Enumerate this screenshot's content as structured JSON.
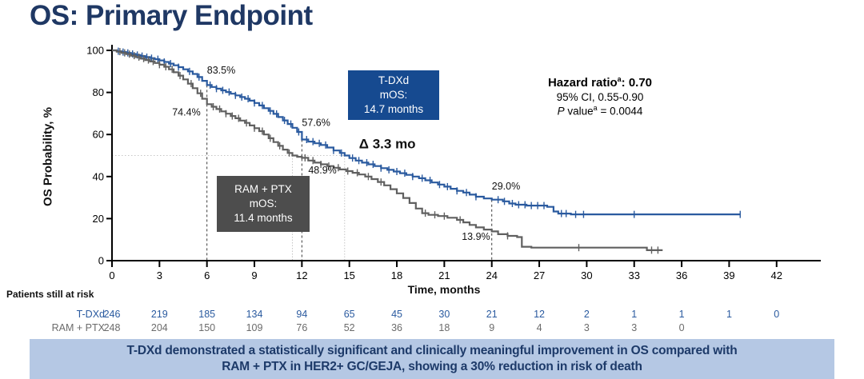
{
  "slide": {
    "title": "OS: Primary Endpoint"
  },
  "chart_data": {
    "type": "line",
    "subtype": "kaplan-meier",
    "xlabel": "Time, months",
    "ylabel": "OS Probability, %",
    "xlim": [
      0,
      43.5
    ],
    "ylim": [
      0,
      100
    ],
    "xticks": [
      0,
      3,
      6,
      9,
      12,
      15,
      18,
      21,
      24,
      27,
      30,
      33,
      36,
      39,
      42
    ],
    "yticks": [
      0,
      20,
      40,
      60,
      80,
      100
    ],
    "grid": false,
    "legend_position": "none",
    "series": [
      {
        "name": "T-DXd",
        "color": "#2a5a9f",
        "median_months": 14.7,
        "points": [
          [
            0,
            100
          ],
          [
            0.3,
            99.6
          ],
          [
            0.6,
            99.2
          ],
          [
            0.9,
            98.8
          ],
          [
            1.2,
            98.3
          ],
          [
            1.5,
            97.8
          ],
          [
            1.8,
            97.3
          ],
          [
            2.1,
            96.8
          ],
          [
            2.4,
            96.3
          ],
          [
            2.7,
            95.8
          ],
          [
            3.0,
            95.2
          ],
          [
            3.3,
            94.5
          ],
          [
            3.6,
            93.7
          ],
          [
            3.9,
            92.9
          ],
          [
            4.2,
            92.0
          ],
          [
            4.5,
            91.0
          ],
          [
            4.8,
            90.0
          ],
          [
            5.1,
            88.8
          ],
          [
            5.4,
            87.3
          ],
          [
            5.7,
            85.5
          ],
          [
            6.0,
            83.5
          ],
          [
            6.3,
            82.6
          ],
          [
            6.6,
            81.8
          ],
          [
            6.9,
            81.0
          ],
          [
            7.2,
            80.2
          ],
          [
            7.5,
            79.4
          ],
          [
            7.8,
            78.6
          ],
          [
            8.1,
            77.8
          ],
          [
            8.4,
            77.0
          ],
          [
            8.7,
            76.1
          ],
          [
            9.0,
            75.0
          ],
          [
            9.3,
            73.8
          ],
          [
            9.6,
            72.5
          ],
          [
            9.9,
            71.2
          ],
          [
            10.2,
            69.8
          ],
          [
            10.5,
            68.3
          ],
          [
            10.8,
            66.7
          ],
          [
            11.1,
            65.0
          ],
          [
            11.4,
            63.2
          ],
          [
            11.7,
            61.2
          ],
          [
            12.0,
            57.6
          ],
          [
            12.4,
            56.6
          ],
          [
            12.8,
            55.8
          ],
          [
            13.2,
            55.0
          ],
          [
            13.6,
            53.8
          ],
          [
            14.0,
            52.4
          ],
          [
            14.4,
            51.2
          ],
          [
            14.7,
            50.0
          ],
          [
            15.0,
            48.8
          ],
          [
            15.4,
            47.6
          ],
          [
            15.8,
            46.6
          ],
          [
            16.2,
            45.8
          ],
          [
            16.6,
            45.0
          ],
          [
            17.0,
            44.0
          ],
          [
            17.4,
            43.2
          ],
          [
            17.8,
            42.4
          ],
          [
            18.2,
            41.6
          ],
          [
            18.6,
            40.8
          ],
          [
            19.0,
            40.0
          ],
          [
            19.4,
            39.2
          ],
          [
            19.8,
            38.2
          ],
          [
            20.2,
            37.2
          ],
          [
            20.6,
            36.2
          ],
          [
            21.0,
            35.2
          ],
          [
            21.4,
            34.2
          ],
          [
            21.8,
            33.2
          ],
          [
            22.2,
            32.4
          ],
          [
            22.6,
            31.4
          ],
          [
            23.0,
            30.4
          ],
          [
            23.5,
            29.6
          ],
          [
            24.0,
            29.0
          ],
          [
            24.7,
            28.2
          ],
          [
            25.1,
            27.2
          ],
          [
            25.5,
            26.6
          ],
          [
            26.2,
            26.2
          ],
          [
            27.5,
            25.6
          ],
          [
            27.9,
            23.4
          ],
          [
            28.2,
            22.4
          ],
          [
            29.0,
            22.0
          ],
          [
            39.7,
            22.0
          ]
        ],
        "censor_times": [
          0.4,
          0.7,
          1.0,
          1.3,
          1.6,
          1.9,
          2.2,
          2.5,
          2.9,
          3.3,
          3.7,
          4.2,
          4.9,
          5.5,
          6.2,
          6.6,
          7.0,
          7.4,
          7.8,
          8.2,
          8.6,
          9.0,
          9.5,
          10.0,
          10.4,
          10.9,
          11.3,
          11.8,
          12.3,
          12.7,
          13.1,
          13.5,
          14.0,
          14.5,
          15.2,
          15.6,
          16.1,
          16.5,
          17.0,
          17.5,
          18.0,
          18.5,
          19.0,
          19.6,
          20.1,
          20.7,
          21.2,
          21.8,
          22.4,
          23.0,
          24.4,
          24.8,
          25.3,
          25.7,
          26.1,
          26.5,
          26.9,
          27.3,
          28.4,
          28.7,
          29.3,
          29.8,
          33.0,
          39.7
        ]
      },
      {
        "name": "RAM + PTX",
        "color": "#606060",
        "median_months": 11.4,
        "points": [
          [
            0,
            100
          ],
          [
            0.3,
            99.4
          ],
          [
            0.6,
            98.8
          ],
          [
            0.9,
            98.2
          ],
          [
            1.2,
            97.5
          ],
          [
            1.5,
            96.8
          ],
          [
            1.8,
            96.1
          ],
          [
            2.1,
            95.4
          ],
          [
            2.4,
            94.7
          ],
          [
            2.7,
            94.0
          ],
          [
            3.0,
            93.2
          ],
          [
            3.3,
            92.2
          ],
          [
            3.6,
            91.0
          ],
          [
            3.9,
            89.6
          ],
          [
            4.2,
            88.0
          ],
          [
            4.5,
            86.2
          ],
          [
            4.8,
            84.2
          ],
          [
            5.1,
            82.0
          ],
          [
            5.4,
            79.6
          ],
          [
            5.7,
            77.0
          ],
          [
            6.0,
            74.4
          ],
          [
            6.3,
            73.2
          ],
          [
            6.6,
            72.1
          ],
          [
            6.9,
            71.0
          ],
          [
            7.2,
            69.9
          ],
          [
            7.5,
            68.8
          ],
          [
            7.8,
            67.7
          ],
          [
            8.1,
            66.6
          ],
          [
            8.4,
            65.5
          ],
          [
            8.7,
            64.3
          ],
          [
            9.0,
            63.0
          ],
          [
            9.3,
            61.6
          ],
          [
            9.6,
            60.0
          ],
          [
            9.9,
            58.2
          ],
          [
            10.2,
            56.4
          ],
          [
            10.5,
            54.6
          ],
          [
            10.8,
            52.8
          ],
          [
            11.1,
            51.2
          ],
          [
            11.4,
            50.0
          ],
          [
            11.7,
            49.4
          ],
          [
            12.0,
            48.9
          ],
          [
            12.4,
            47.6
          ],
          [
            12.8,
            46.6
          ],
          [
            13.2,
            45.8
          ],
          [
            13.6,
            45.0
          ],
          [
            14.0,
            44.2
          ],
          [
            14.4,
            43.4
          ],
          [
            14.8,
            42.6
          ],
          [
            15.2,
            41.8
          ],
          [
            15.6,
            41.0
          ],
          [
            16.0,
            40.0
          ],
          [
            16.4,
            38.8
          ],
          [
            16.8,
            37.4
          ],
          [
            17.2,
            35.8
          ],
          [
            17.6,
            34.0
          ],
          [
            18.0,
            32.0
          ],
          [
            18.4,
            29.8
          ],
          [
            18.8,
            27.4
          ],
          [
            19.2,
            24.8
          ],
          [
            19.6,
            22.6
          ],
          [
            20.0,
            21.8
          ],
          [
            20.6,
            21.2
          ],
          [
            21.2,
            20.4
          ],
          [
            21.8,
            19.4
          ],
          [
            22.2,
            18.2
          ],
          [
            22.6,
            17.0
          ],
          [
            23.0,
            15.8
          ],
          [
            23.5,
            14.8
          ],
          [
            24.0,
            13.9
          ],
          [
            24.4,
            12.6
          ],
          [
            25.0,
            11.8
          ],
          [
            25.6,
            11.2
          ],
          [
            25.9,
            6.6
          ],
          [
            26.5,
            6.2
          ],
          [
            33.5,
            6.2
          ],
          [
            33.8,
            5.0
          ],
          [
            34.8,
            5.0
          ]
        ],
        "censor_times": [
          0.5,
          0.8,
          1.1,
          1.4,
          1.7,
          2.0,
          2.3,
          2.6,
          3.0,
          3.4,
          3.8,
          4.3,
          5.0,
          5.6,
          6.4,
          6.8,
          7.2,
          7.6,
          8.0,
          8.5,
          9.0,
          9.5,
          10.0,
          10.6,
          11.2,
          12.2,
          12.7,
          13.2,
          13.7,
          14.3,
          14.9,
          15.5,
          16.2,
          17.0,
          19.8,
          20.4,
          21.0,
          22.0,
          25.0,
          29.5,
          34.1,
          34.5
        ]
      }
    ],
    "reference_lines_dashed": [
      {
        "x": 6,
        "from_pct": 83.5
      },
      {
        "x": 12,
        "from_pct": 57.6
      },
      {
        "x": 24,
        "from_pct": 29.0
      }
    ],
    "median_marker_lines": [
      {
        "x": 11.4,
        "from_pct": 50
      },
      {
        "x": 14.7,
        "from_pct": 50
      }
    ],
    "median_horizontal_line": {
      "pct": 50,
      "x_from": 0,
      "x_to": 14.7
    },
    "annotations": [
      {
        "label": "83.5%",
        "x": 6.9,
        "y": 89.0,
        "bold": false
      },
      {
        "label": "74.4%",
        "x": 4.7,
        "y": 69.0,
        "bold": false
      },
      {
        "label": "57.6%",
        "x": 12.9,
        "y": 64.0,
        "bold": false
      },
      {
        "label": "48.9%",
        "x": 13.3,
        "y": 41.5,
        "bold": false
      },
      {
        "label": "29.0%",
        "x": 24.9,
        "y": 33.8,
        "bold": false
      },
      {
        "label": "13.9%",
        "x": 23.0,
        "y": 9.8,
        "bold": false
      },
      {
        "label": "Δ 3.3 mo",
        "x": 17.4,
        "y": 53.5,
        "bold": true
      }
    ]
  },
  "median_boxes": {
    "tdxd": {
      "lines": [
        "T-DXd",
        "mOS:",
        "14.7 months"
      ],
      "bg": "#164a90",
      "text_color": "#ffffff"
    },
    "ram": {
      "lines": [
        "RAM + PTX",
        "mOS:",
        "11.4 months"
      ],
      "bg": "#4d4d4d",
      "text_color": "#ffffff"
    }
  },
  "stats": {
    "hr_label": "Hazard ratio",
    "hr_sup": "a",
    "hr_value": ": 0.70",
    "ci": "95% CI, 0.55-0.90",
    "p_italic": "P",
    "p_label": " value",
    "p_sup": "a",
    "p_value": " = 0.0044"
  },
  "at_risk": {
    "heading": "Patients still at risk",
    "rows": [
      {
        "label": "T-DXd",
        "color": "#2a5a9f",
        "values": [
          246,
          219,
          185,
          134,
          94,
          65,
          45,
          30,
          21,
          12,
          2,
          1,
          1,
          1,
          0
        ]
      },
      {
        "label": "RAM + PTX",
        "color": "#6b6b6b",
        "values": [
          248,
          204,
          150,
          109,
          76,
          52,
          36,
          18,
          9,
          4,
          3,
          3,
          0
        ]
      }
    ]
  },
  "banner": {
    "line1": "T-DXd demonstrated a statistically significant and clinically meaningful improvement in OS compared with",
    "line2": "RAM + PTX in HER2+ GC/GEJA, showing a 30% reduction in risk of death",
    "bg": "#b5c8e4",
    "text_color": "#1d3a69"
  },
  "colors": {
    "title": "#1f3864",
    "axis": "#000000"
  }
}
